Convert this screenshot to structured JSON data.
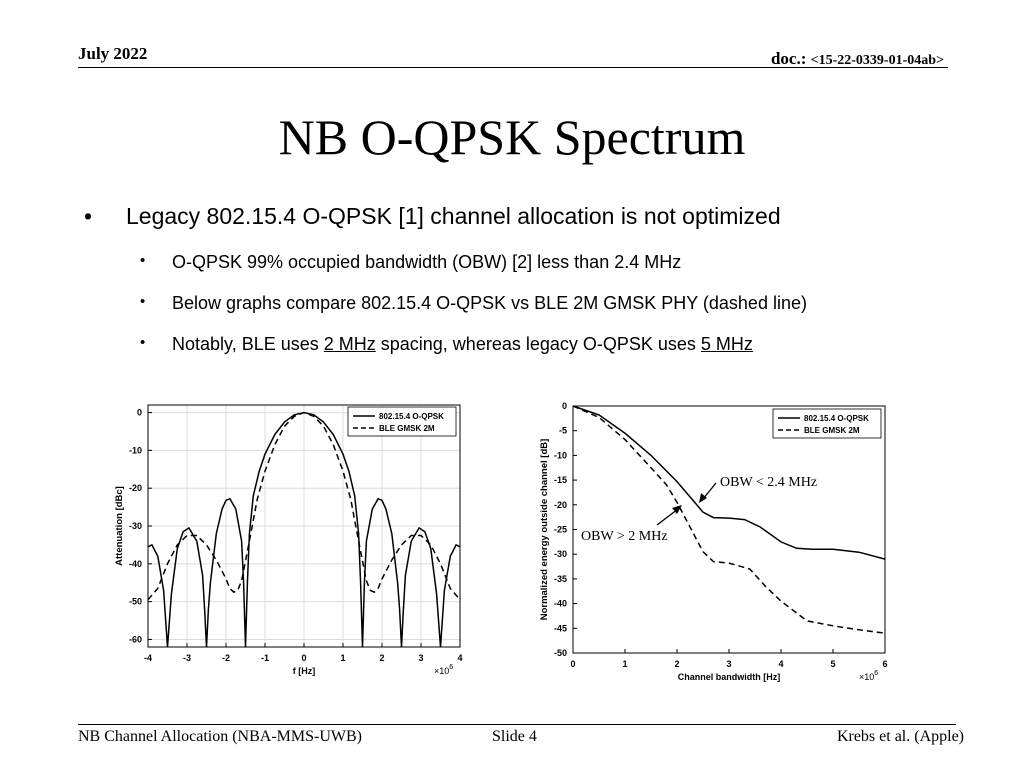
{
  "header": {
    "date": "July 2022",
    "doc_label": "doc.:",
    "doc_number": "<15-22-0339-01-04ab>"
  },
  "title": "NB O-QPSK Spectrum",
  "bullets": {
    "level1": "Legacy 802.15.4 O-QPSK [1] channel allocation is not optimized",
    "level2": [
      {
        "text": "O-QPSK 99% occupied bandwidth (OBW) [2] less than 2.4 MHz"
      },
      {
        "text": "Below graphs compare 802.15.4 O-QPSK vs BLE 2M GMSK PHY (dashed line)"
      },
      {
        "pre": "Notably, BLE uses ",
        "u1": "2 MHz",
        "mid": " spacing, whereas legacy O-QPSK uses ",
        "u2": "5 MHz"
      }
    ]
  },
  "chart_data": [
    {
      "type": "line",
      "xlabel": "f [Hz]",
      "ylabel": "Attenuation [dBc]",
      "x_multiplier": "×10^6",
      "xlim": [
        -4,
        4
      ],
      "ylim": [
        -62,
        2
      ],
      "xticks": [
        "-4",
        "-3",
        "-2",
        "-1",
        "0",
        "1",
        "2",
        "3",
        "4"
      ],
      "yticks": [
        "0",
        "-10",
        "-20",
        "-30",
        "-40",
        "-50",
        "-60"
      ],
      "grid": true,
      "legend": "top-right",
      "series": [
        {
          "name": "802.15.4 O-QPSK",
          "style": "solid",
          "x": [
            0,
            0.25,
            0.5,
            0.75,
            1.0,
            1.15,
            1.3,
            1.4,
            1.45,
            1.5,
            1.55,
            1.6,
            1.75,
            1.9,
            2.0,
            2.1,
            2.25,
            2.4,
            2.45,
            2.5,
            2.55,
            2.6,
            2.75,
            2.95,
            3.1,
            3.25,
            3.4,
            3.5,
            3.6,
            3.75,
            3.9,
            4.0
          ],
          "y": [
            0,
            -0.6,
            -2.5,
            -5.8,
            -11,
            -15.5,
            -22,
            -32,
            -45,
            -63,
            -45,
            -34,
            -25.5,
            -22.8,
            -23.2,
            -25.5,
            -32,
            -45,
            -52,
            -63,
            -52,
            -43,
            -34,
            -30.5,
            -31.5,
            -36,
            -48,
            -63,
            -47,
            -38,
            -35,
            -35.5
          ]
        },
        {
          "name": "BLE GMSK 2M",
          "style": "dashed",
          "x": [
            0,
            0.25,
            0.5,
            0.75,
            1.0,
            1.2,
            1.4,
            1.6,
            1.7,
            1.8,
            1.9,
            2.0,
            2.25,
            2.5,
            2.75,
            3.0,
            3.25,
            3.5,
            3.75,
            4.0
          ],
          "y": [
            0,
            -1,
            -3.6,
            -8.5,
            -15.5,
            -23,
            -34,
            -44.5,
            -47,
            -47.5,
            -46.5,
            -44,
            -39,
            -35,
            -32.5,
            -32.5,
            -35,
            -40,
            -46.5,
            -49.5
          ]
        }
      ]
    },
    {
      "type": "line",
      "xlabel": "Channel bandwidth [Hz]",
      "ylabel": "Normalized energy outside channel [dB]",
      "x_multiplier": "×10^6",
      "xlim": [
        0,
        6
      ],
      "ylim": [
        -50,
        0
      ],
      "xticks": [
        "0",
        "1",
        "2",
        "3",
        "4",
        "5",
        "6"
      ],
      "yticks": [
        "0",
        "-5",
        "-10",
        "-15",
        "-20",
        "-25",
        "-30",
        "-35",
        "-40",
        "-45",
        "-50"
      ],
      "grid": false,
      "legend": "top-right",
      "annotations": [
        "OBW < 2.4 MHz",
        "OBW > 2 MHz"
      ],
      "series": [
        {
          "name": "802.15.4 O-QPSK",
          "style": "solid",
          "x": [
            0,
            0.5,
            1.0,
            1.5,
            2.0,
            2.3,
            2.5,
            2.7,
            3.0,
            3.3,
            3.6,
            4.0,
            4.3,
            4.6,
            5.0,
            5.5,
            6.0
          ],
          "y": [
            0,
            -1.8,
            -5.5,
            -10,
            -15.3,
            -19,
            -21.5,
            -22.6,
            -22.7,
            -23,
            -24.5,
            -27.5,
            -28.8,
            -29,
            -29,
            -29.6,
            -31
          ]
        },
        {
          "name": "BLE GMSK 2M",
          "style": "dashed",
          "x": [
            0,
            0.5,
            1.0,
            1.5,
            1.8,
            2.0,
            2.2,
            2.5,
            2.7,
            3.0,
            3.4,
            3.7,
            4.0,
            4.5,
            5.0,
            5.5,
            6.0
          ],
          "y": [
            0,
            -2.3,
            -6.8,
            -12.5,
            -16,
            -19.5,
            -23.5,
            -29.5,
            -31.5,
            -31.8,
            -33,
            -36.5,
            -39.5,
            -43.5,
            -44.5,
            -45.3,
            -46
          ]
        }
      ]
    }
  ],
  "footer": {
    "left": "NB Channel Allocation (NBA-MMS-UWB)",
    "center": "Slide 4",
    "right": "Krebs et al. (Apple)"
  }
}
